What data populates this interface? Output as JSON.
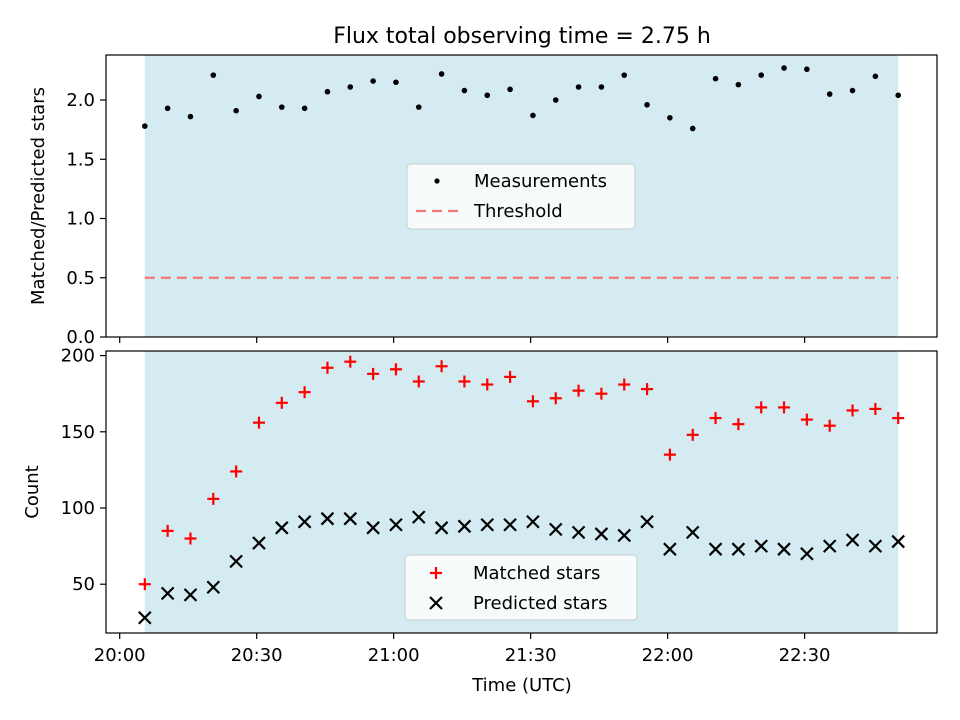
{
  "chart_data": {
    "title": "Flux total observing time = 2.75 h",
    "xlabel": "Time (UTC)",
    "x_ticks": [
      "20:00",
      "20:30",
      "21:00",
      "21:30",
      "22:00",
      "22:30"
    ],
    "x_tick_minutes": [
      0,
      30,
      60,
      90,
      120,
      150
    ],
    "x_range_minutes": [
      -3,
      179
    ],
    "shaded_range_minutes": [
      5.5,
      170.5
    ],
    "shade_color": "#d4ebf1",
    "time_minutes": [
      5.5,
      10.5,
      15.5,
      20.5,
      25.5,
      30.5,
      35.5,
      40.5,
      45.5,
      50.5,
      55.5,
      60.5,
      65.5,
      70.5,
      75.5,
      80.5,
      85.5,
      90.5,
      95.5,
      100.5,
      105.5,
      110.5,
      115.5,
      120.5,
      125.5,
      130.5,
      135.5,
      140.5,
      145.5,
      150.5,
      155.5,
      160.5,
      165.5,
      170.5
    ],
    "top": {
      "type": "scatter",
      "ylabel": "Matched/Predicted stars",
      "ylim": [
        0,
        2.38
      ],
      "y_ticks": [
        "0.0",
        "0.5",
        "1.0",
        "1.5",
        "2.0"
      ],
      "y_tick_values": [
        0,
        0.5,
        1.0,
        1.5,
        2.0
      ],
      "threshold": 0.5,
      "measurements": [
        1.78,
        1.93,
        1.86,
        2.21,
        1.91,
        2.03,
        1.94,
        1.93,
        2.07,
        2.11,
        2.16,
        2.15,
        1.94,
        2.22,
        2.08,
        2.04,
        2.09,
        1.87,
        2.0,
        2.11,
        2.11,
        2.21,
        1.96,
        1.85,
        1.76,
        2.18,
        2.13,
        2.21,
        2.27,
        2.26,
        2.05,
        2.08,
        2.2,
        2.04
      ],
      "legend": {
        "placement": "center",
        "items": [
          {
            "label": "Measurements",
            "color": "#000000",
            "marker": "dot"
          },
          {
            "label": "Threshold",
            "color": "#f07878",
            "marker": "dashed-line"
          }
        ]
      }
    },
    "bottom": {
      "type": "scatter",
      "ylabel": "Count",
      "ylim": [
        18,
        203
      ],
      "y_ticks": [
        "50",
        "100",
        "150",
        "200"
      ],
      "y_tick_values": [
        50,
        100,
        150,
        200
      ],
      "series": [
        {
          "name": "Matched stars",
          "marker": "plus",
          "color": "#ff0000",
          "values": [
            50,
            85,
            80,
            106,
            124,
            156,
            169,
            176,
            192,
            196,
            188,
            191,
            183,
            193,
            183,
            181,
            186,
            170,
            172,
            177,
            175,
            181,
            178,
            135,
            148,
            159,
            155,
            166,
            166,
            158,
            154,
            164,
            165,
            159
          ]
        },
        {
          "name": "Predicted stars",
          "marker": "x",
          "color": "#000000",
          "values": [
            28,
            44,
            43,
            48,
            65,
            77,
            87,
            91,
            93,
            93,
            87,
            89,
            94,
            87,
            88,
            89,
            89,
            91,
            86,
            84,
            83,
            82,
            91,
            73,
            84,
            73,
            73,
            75,
            73,
            70,
            75,
            79,
            75,
            78
          ]
        }
      ],
      "legend": {
        "placement": "lower center"
      }
    }
  }
}
